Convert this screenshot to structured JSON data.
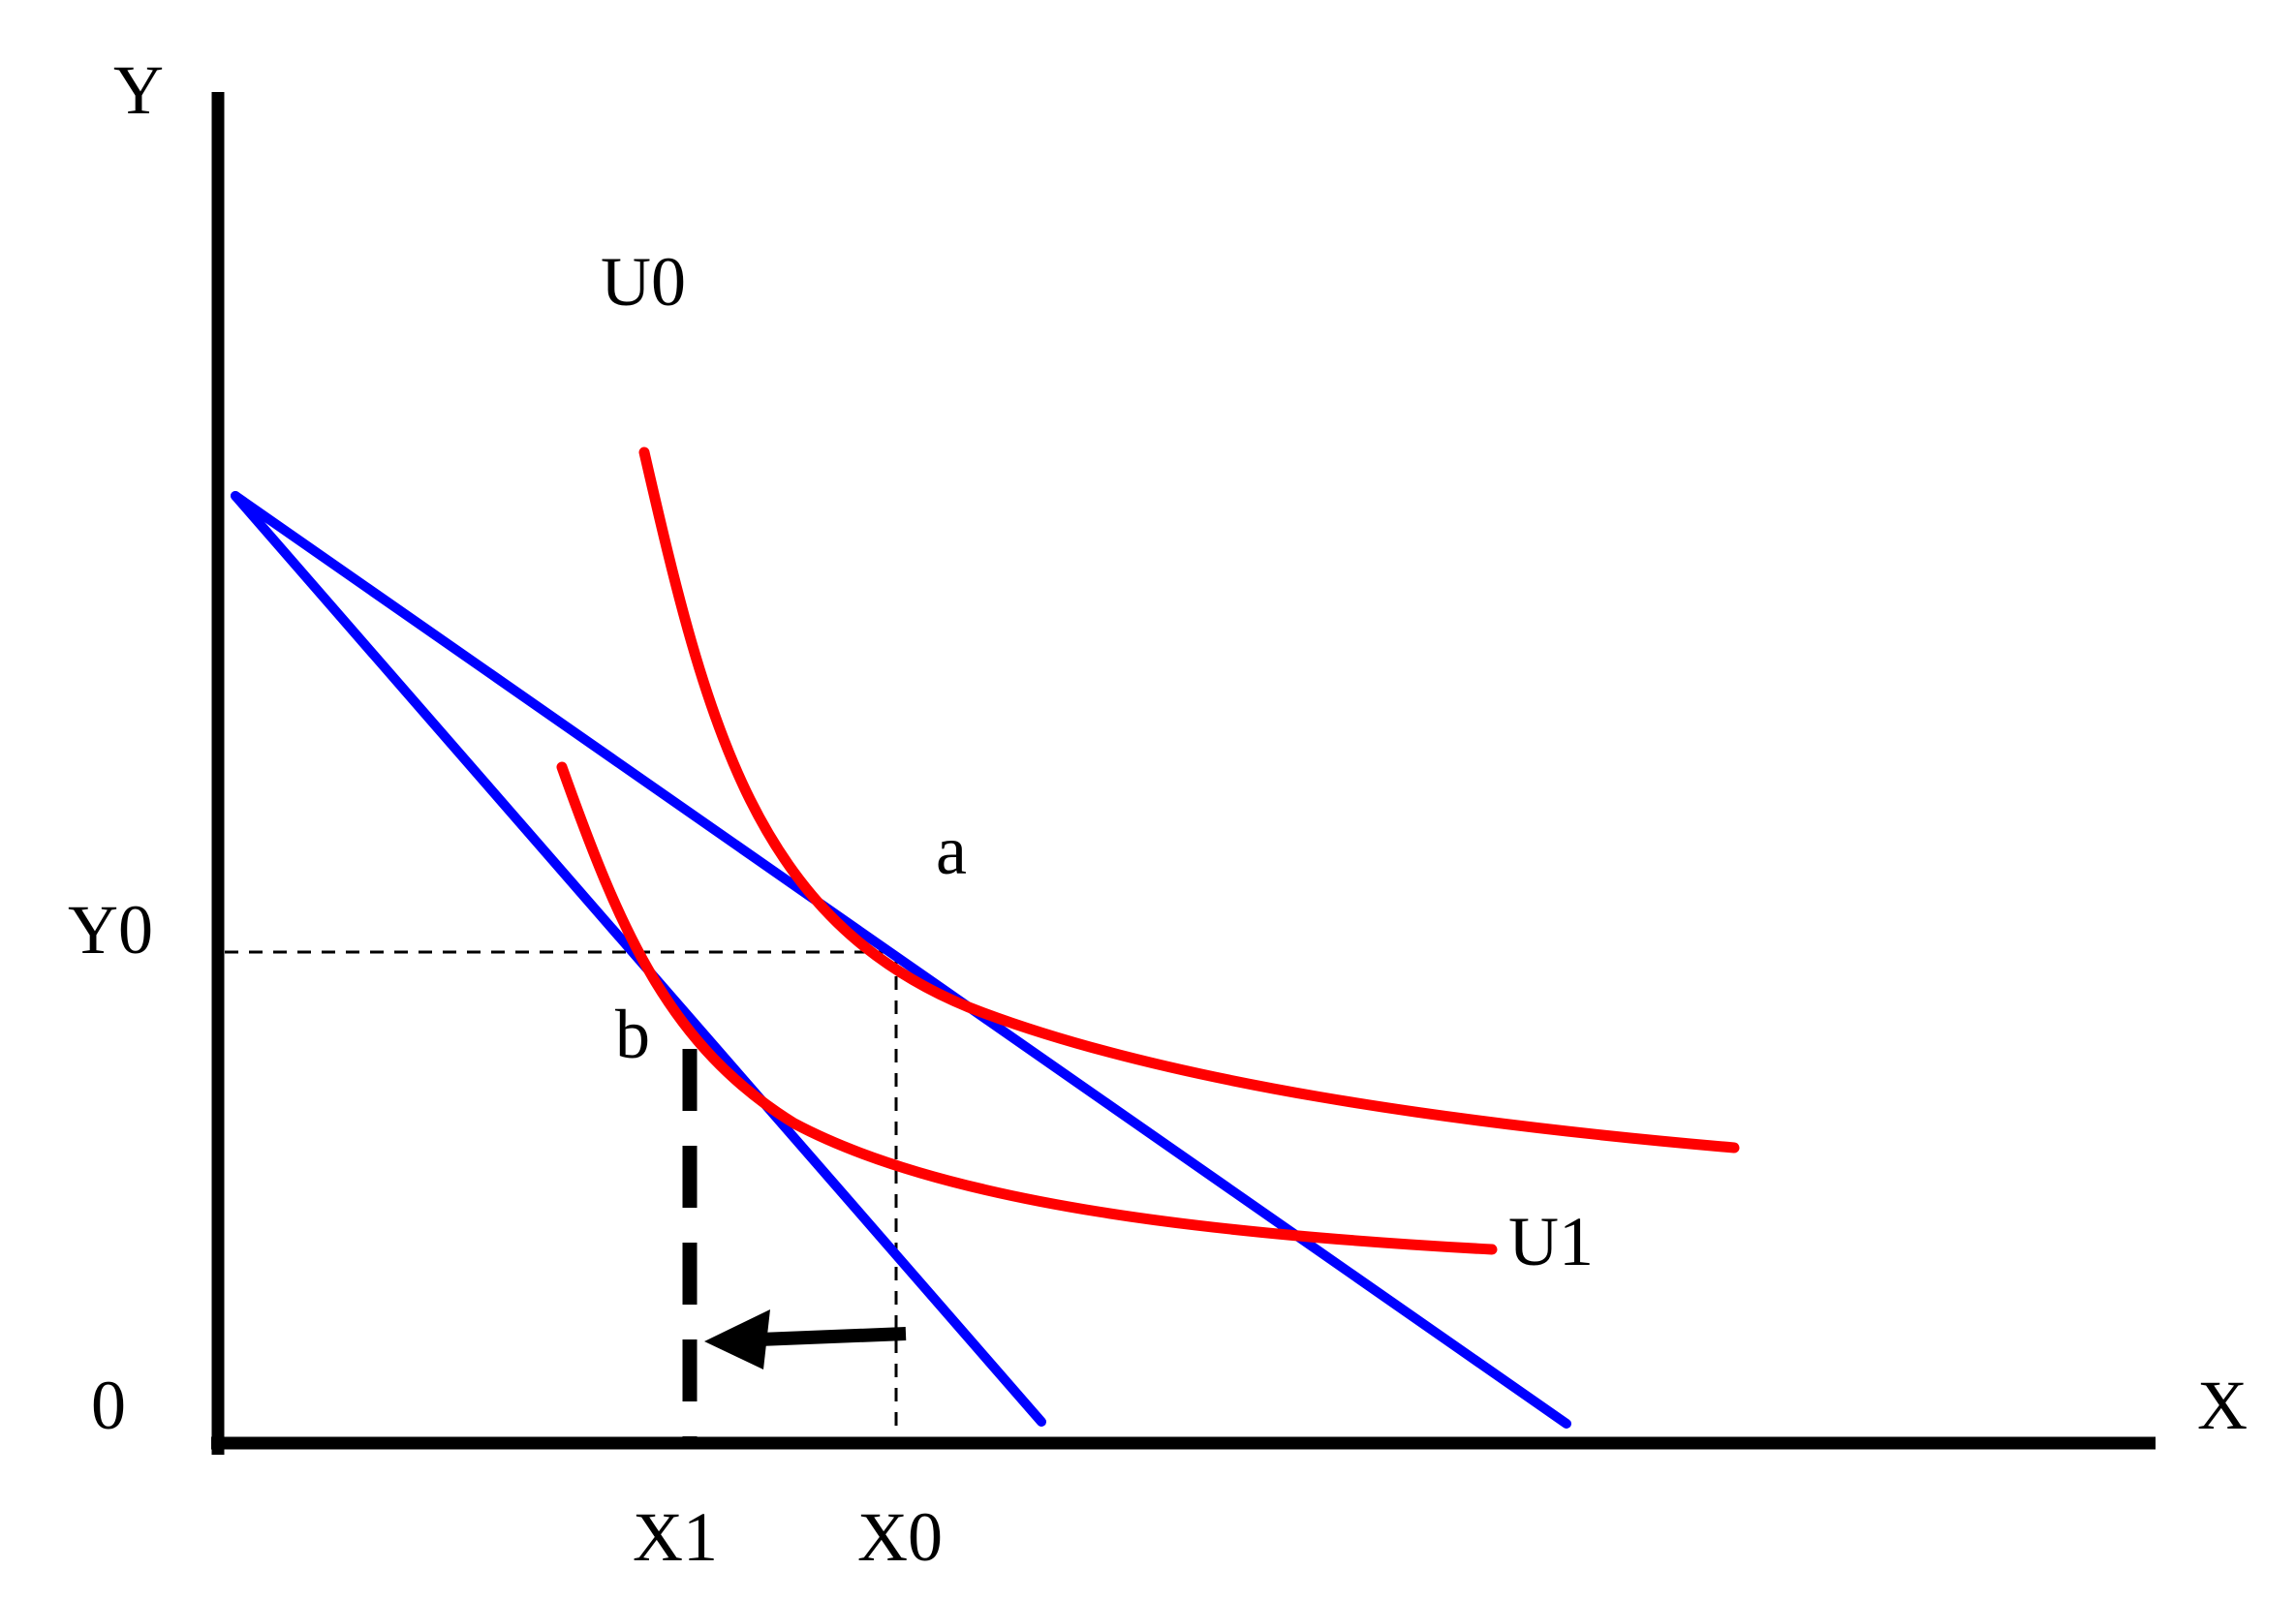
{
  "colors": {
    "axis": "#000000",
    "indifference_curve": "#ff0000",
    "budget_line": "#0000ff",
    "guide_line": "#000000",
    "background": "#ffffff"
  },
  "axes": {
    "x_label": "X",
    "y_label": "Y",
    "origin_label": "0"
  },
  "curves": {
    "u0_label": "U0",
    "u1_label": "U1"
  },
  "points": {
    "a_label": "a",
    "b_label": "b"
  },
  "ticks": {
    "y0_label": "Y0",
    "x0_label": "X0",
    "x1_label": "X1"
  },
  "annotations": {
    "arrow_direction": "left",
    "arrow_meaning": "X0 to X1"
  }
}
